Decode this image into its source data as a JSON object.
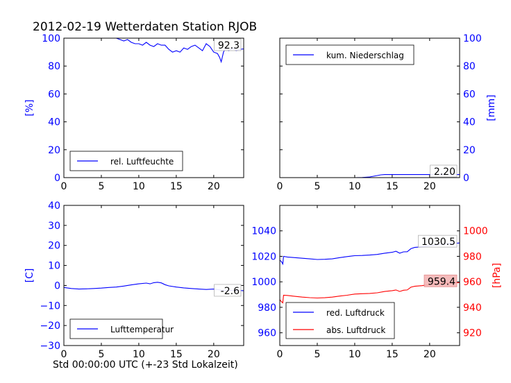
{
  "title": "2012-02-19 Wetterdaten Station RJOB",
  "xlabel": "Std 00:00:00 UTC (+-23 Std Lokalzeit)",
  "colors": {
    "blue": "#0000ff",
    "red": "#ff0000",
    "axis": "#000000"
  },
  "chart_data": [
    {
      "id": "humidity",
      "type": "line",
      "ylabel": "[%]",
      "ylim": [
        0,
        100
      ],
      "yticks": [
        "0",
        "20",
        "40",
        "60",
        "80",
        "100"
      ],
      "xlim": [
        0,
        24
      ],
      "xticks": [
        "0",
        "5",
        "10",
        "15",
        "20"
      ],
      "legend": "rel. Luftfeuchte",
      "legend_loc": "lower-left",
      "annotation": "92.3",
      "series": [
        {
          "name": "rel. Luftfeuchte",
          "color": "#0000ff",
          "x": [
            0,
            1,
            2,
            3,
            4,
            5,
            6,
            7,
            7.5,
            8,
            8.5,
            9,
            9.5,
            10,
            10.5,
            11,
            11.5,
            12,
            12.5,
            13,
            13.5,
            14,
            14.5,
            15,
            15.5,
            16,
            16.5,
            17,
            17.5,
            18,
            18.5,
            19,
            19.5,
            20,
            20.5,
            20.8,
            21,
            21.3,
            21.6,
            22,
            22.5,
            23,
            23.5,
            24
          ],
          "y": [
            100,
            100,
            100,
            100,
            100,
            100,
            100,
            100,
            99,
            98,
            99,
            97,
            96,
            96,
            95,
            97,
            95,
            94,
            96,
            95,
            95,
            92,
            90,
            91,
            90,
            93,
            92,
            94,
            95,
            93,
            91,
            96,
            94,
            90,
            89,
            86,
            83,
            90,
            93,
            91,
            93,
            91,
            92,
            92.3
          ]
        }
      ]
    },
    {
      "id": "precipitation",
      "type": "line",
      "ylabel": "[mm]",
      "ylim": [
        0,
        100
      ],
      "yticks": [
        "0",
        "20",
        "40",
        "60",
        "80",
        "100"
      ],
      "xlim": [
        0,
        24
      ],
      "xticks": [
        "0",
        "5",
        "10",
        "15",
        "20"
      ],
      "legend": "kum. Niederschlag",
      "legend_loc": "upper-left",
      "annotation": "2.20",
      "series": [
        {
          "name": "kum. Niederschlag",
          "color": "#0000ff",
          "x": [
            0,
            10,
            11,
            12,
            12.5,
            13,
            13.5,
            14,
            24
          ],
          "y": [
            0,
            0,
            0.1,
            0.5,
            1,
            1.5,
            2,
            2.2,
            2.2
          ]
        }
      ]
    },
    {
      "id": "temperature",
      "type": "line",
      "ylabel": "[C]",
      "ylim": [
        -30,
        40
      ],
      "yticks": [
        "−30",
        "−20",
        "−10",
        "0",
        "10",
        "20",
        "30",
        "40"
      ],
      "xlim": [
        0,
        24
      ],
      "xticks": [
        "0",
        "5",
        "10",
        "15",
        "20"
      ],
      "legend": "Lufttemperatur",
      "legend_loc": "lower-left",
      "annotation": "-2.6",
      "series": [
        {
          "name": "Lufttemperatur",
          "color": "#0000ff",
          "x": [
            0,
            1,
            2,
            3,
            4,
            5,
            6,
            7,
            8,
            9,
            10,
            11,
            11.5,
            12,
            12.5,
            13,
            13.5,
            14,
            15,
            16,
            17,
            18,
            19,
            20,
            21,
            22,
            23,
            24
          ],
          "y": [
            -1,
            -1.5,
            -1.8,
            -1.7,
            -1.5,
            -1.3,
            -1,
            -0.8,
            -0.3,
            0.3,
            0.8,
            1.2,
            0.8,
            1.4,
            1.6,
            1.3,
            0.4,
            -0.2,
            -0.8,
            -1.2,
            -1.5,
            -1.8,
            -2,
            -1.8,
            -2.3,
            -2.5,
            -2.5,
            -2.6
          ]
        }
      ]
    },
    {
      "id": "pressure",
      "type": "line",
      "ylabel": "[hPa]",
      "ylim": [
        950,
        1060
      ],
      "yticks": [
        "960",
        "980",
        "1000",
        "1020",
        "1040"
      ],
      "y2lim": [
        910,
        1020
      ],
      "y2ticks": [
        "920",
        "940",
        "960",
        "980",
        "1000"
      ],
      "xlim": [
        0,
        24
      ],
      "xticks": [
        "0",
        "5",
        "10",
        "15",
        "20"
      ],
      "legend_loc": "lower-left",
      "annotations": [
        "1030.5",
        "959.4"
      ],
      "series": [
        {
          "name": "red. Luftdruck",
          "color": "#0000ff",
          "axis": "left",
          "x": [
            0,
            0.2,
            0.4,
            0.5,
            1,
            2,
            3,
            4,
            5,
            6,
            7,
            8,
            9,
            10,
            11,
            12,
            13,
            14,
            15,
            15.5,
            16,
            16.5,
            17,
            17.5,
            18,
            19,
            20,
            21,
            22,
            23,
            24
          ],
          "y": [
            1017,
            1016,
            1014,
            1020,
            1019.5,
            1019,
            1018.5,
            1018,
            1017.5,
            1017.7,
            1018,
            1019,
            1019.8,
            1020.5,
            1020.7,
            1021,
            1021.5,
            1022.5,
            1023.2,
            1024,
            1022.5,
            1023.5,
            1023.6,
            1026,
            1027,
            1027.5,
            1028.3,
            1029,
            1029.6,
            1030,
            1030.5
          ]
        },
        {
          "name": "abs. Luftdruck",
          "color": "#ff0000",
          "axis": "right",
          "x": [
            0,
            0.2,
            0.4,
            0.5,
            1,
            2,
            3,
            4,
            5,
            6,
            7,
            8,
            9,
            10,
            11,
            12,
            13,
            14,
            15,
            15.5,
            16,
            16.5,
            17,
            17.5,
            18,
            19,
            20,
            21,
            22,
            23,
            24
          ],
          "y": [
            946,
            944.5,
            943.5,
            949.5,
            949.3,
            948.6,
            948,
            947.6,
            947.3,
            947.5,
            948,
            948.8,
            949.5,
            950.4,
            950.7,
            950.9,
            951.4,
            952.4,
            953.1,
            953.6,
            952.4,
            953.4,
            953.6,
            955.8,
            956.5,
            957,
            957.8,
            958.5,
            958.9,
            959.2,
            959.4
          ]
        }
      ]
    }
  ]
}
